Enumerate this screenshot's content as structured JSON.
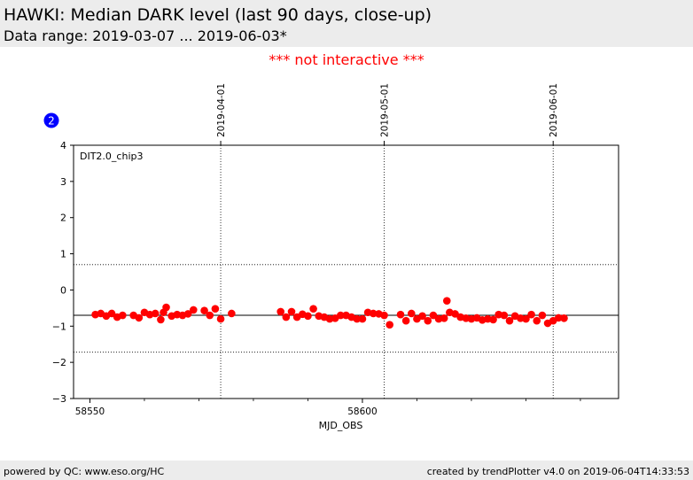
{
  "header": {
    "title": "HAWKI: Median DARK level (last 90 days, close-up)",
    "subtitle": "Data range: 2019-03-07 ... 2019-06-03*"
  },
  "notice": "*** not interactive ***",
  "footer": {
    "left": "powered by QC: www.eso.org/HC",
    "right": "created by trendPlotter v4.0 on 2019-06-04T14:33:53"
  },
  "colors": {
    "points": "#ff0000",
    "badge": "#0000ff",
    "header_bg": "#ececec",
    "notice": "#ff0000"
  },
  "chart_data": {
    "type": "scatter",
    "badge": "2",
    "panel_label": "DIT2.0_chip3",
    "xlabel": "MJD_OBS",
    "ylabel": "",
    "xlim": [
      58547,
      58647
    ],
    "ylim": [
      -3,
      4
    ],
    "x_major_ticks": [
      58550,
      58600
    ],
    "x_minor_ticks": [
      58560,
      58570,
      58580,
      58590,
      58610,
      58620,
      58630,
      58640
    ],
    "y_ticks": [
      -3,
      -2,
      -1,
      0,
      1,
      2,
      3,
      4
    ],
    "top_date_ticks": [
      {
        "label": "2019-04-01",
        "x": 58574
      },
      {
        "label": "2019-05-01",
        "x": 58604
      },
      {
        "label": "2019-06-01",
        "x": 58635
      }
    ],
    "hlines": [
      {
        "y": -0.7,
        "style": "solid"
      },
      {
        "y": 0.7,
        "style": "dotted"
      },
      {
        "y": -1.72,
        "style": "dotted"
      }
    ],
    "x": [
      58551.0,
      58552.0,
      58553.0,
      58554.0,
      58555.0,
      58556.0,
      58558.0,
      58559.0,
      58560.0,
      58561.0,
      58562.0,
      58563.0,
      58563.5,
      58564.0,
      58565.0,
      58566.0,
      58567.0,
      58568.0,
      58569.0,
      58571.0,
      58572.0,
      58573.0,
      58574.0,
      58576.0,
      58585.0,
      58586.0,
      58587.0,
      58588.0,
      58589.0,
      58590.0,
      58591.0,
      58592.0,
      58593.0,
      58594.0,
      58595.0,
      58596.0,
      58597.0,
      58598.0,
      58599.0,
      58600.0,
      58601.0,
      58602.0,
      58603.0,
      58604.0,
      58605.0,
      58607.0,
      58608.0,
      58609.0,
      58610.0,
      58611.0,
      58612.0,
      58613.0,
      58614.0,
      58615.0,
      58615.5,
      58616.0,
      58617.0,
      58618.0,
      58619.0,
      58620.0,
      58621.0,
      58622.0,
      58623.0,
      58624.0,
      58625.0,
      58626.0,
      58627.0,
      58628.0,
      58629.0,
      58630.0,
      58631.0,
      58632.0,
      58633.0,
      58634.0,
      58635.0,
      58636.0,
      58637.0
    ],
    "y": [
      -0.68,
      -0.65,
      -0.72,
      -0.65,
      -0.75,
      -0.7,
      -0.7,
      -0.77,
      -0.62,
      -0.68,
      -0.65,
      -0.82,
      -0.62,
      -0.48,
      -0.72,
      -0.68,
      -0.7,
      -0.66,
      -0.55,
      -0.57,
      -0.7,
      -0.52,
      -0.8,
      -0.65,
      -0.6,
      -0.75,
      -0.6,
      -0.75,
      -0.67,
      -0.72,
      -0.52,
      -0.72,
      -0.75,
      -0.8,
      -0.78,
      -0.7,
      -0.7,
      -0.75,
      -0.8,
      -0.8,
      -0.62,
      -0.65,
      -0.66,
      -0.7,
      -0.96,
      -0.68,
      -0.85,
      -0.65,
      -0.8,
      -0.72,
      -0.85,
      -0.7,
      -0.8,
      -0.78,
      -0.3,
      -0.62,
      -0.66,
      -0.75,
      -0.78,
      -0.8,
      -0.77,
      -0.83,
      -0.8,
      -0.82,
      -0.68,
      -0.7,
      -0.85,
      -0.72,
      -0.78,
      -0.8,
      -0.68,
      -0.85,
      -0.7,
      -0.92,
      -0.85,
      -0.77,
      -0.78
    ]
  }
}
